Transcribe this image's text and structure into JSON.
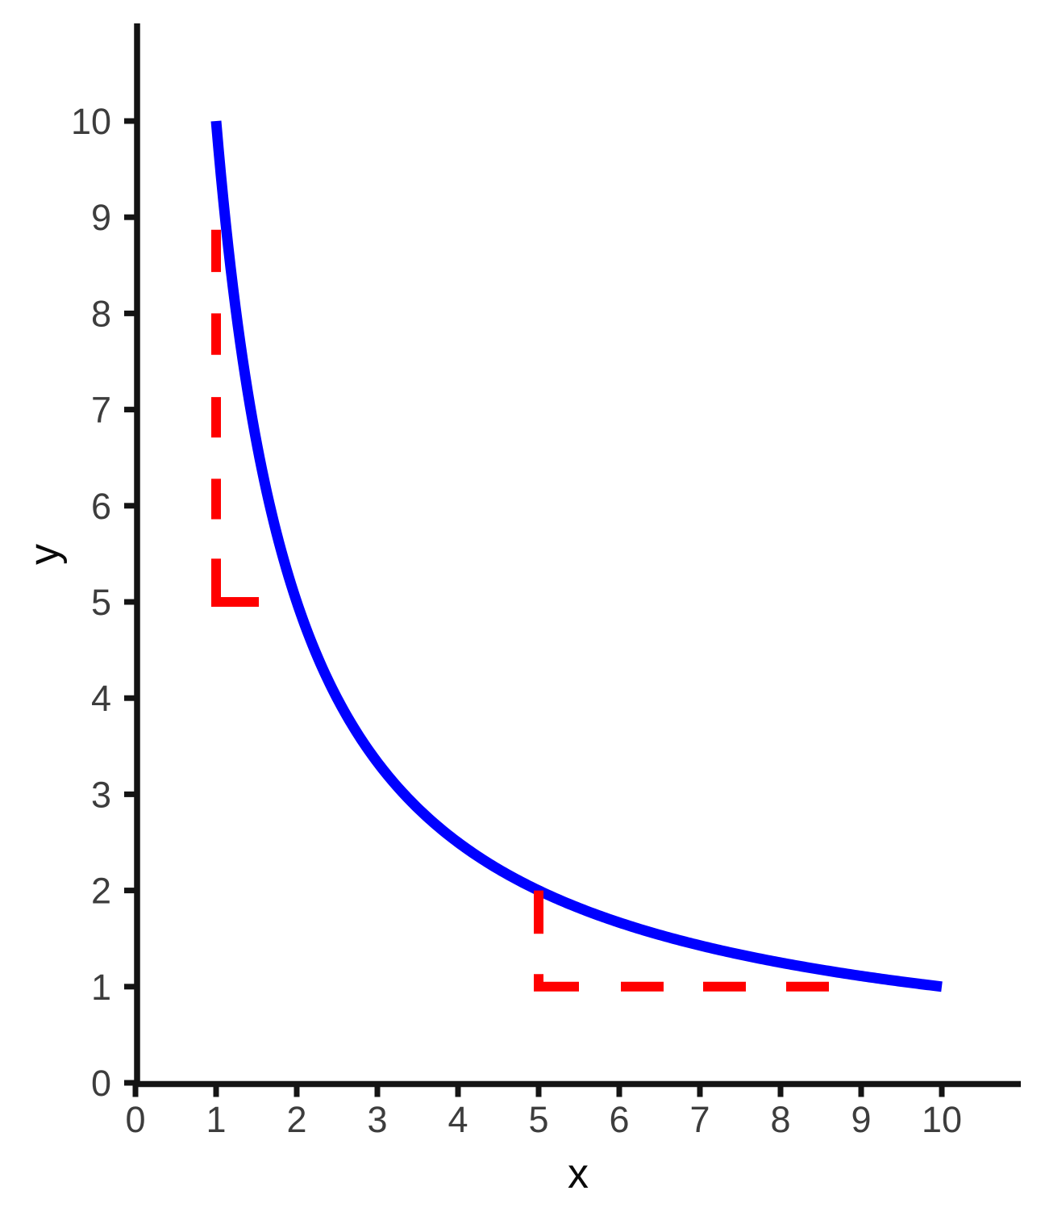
{
  "chart_data": {
    "type": "line",
    "title": "",
    "xlabel": "x",
    "ylabel": "y",
    "xlim": [
      0,
      11
    ],
    "ylim": [
      0,
      11
    ],
    "x_ticks": [
      0,
      1,
      2,
      3,
      4,
      5,
      6,
      7,
      8,
      9,
      10
    ],
    "y_ticks": [
      0,
      1,
      2,
      3,
      4,
      5,
      6,
      7,
      8,
      9,
      10
    ],
    "grid": false,
    "legend": false,
    "series": [
      {
        "name": "reciprocal-curve",
        "expr": "10/x",
        "x_start": 1,
        "x_end": 10,
        "color": "#0000ff",
        "style": "solid",
        "key_points": [
          [
            1,
            10
          ],
          [
            2,
            5
          ],
          [
            4,
            2.5
          ],
          [
            5,
            2
          ],
          [
            8,
            1.25
          ],
          [
            10,
            1
          ]
        ]
      }
    ],
    "annotations": [
      {
        "name": "dashed-guide-x1",
        "color": "#ff0000",
        "style": "dashed",
        "segments": [
          [
            [
              1,
              8.87
            ],
            [
              1,
              8.43
            ]
          ],
          [
            [
              1,
              8.0
            ],
            [
              1,
              7.57
            ]
          ],
          [
            [
              1,
              7.13
            ],
            [
              1,
              6.71
            ]
          ],
          [
            [
              1,
              6.28
            ],
            [
              1,
              5.86
            ]
          ],
          [
            [
              1,
              5.45
            ],
            [
              1,
              5.0
            ],
            [
              1.53,
              5.0
            ]
          ]
        ]
      },
      {
        "name": "dashed-guide-x5",
        "color": "#ff0000",
        "style": "dashed",
        "segments": [
          [
            [
              5,
              2.0
            ],
            [
              5,
              1.55
            ]
          ],
          [
            [
              5,
              1.13
            ],
            [
              5,
              1.0
            ],
            [
              5.5,
              1.0
            ]
          ],
          [
            [
              6.02,
              1.0
            ],
            [
              6.55,
              1.0
            ]
          ],
          [
            [
              7.04,
              1.0
            ],
            [
              7.57,
              1.0
            ]
          ],
          [
            [
              8.07,
              1.0
            ],
            [
              8.6,
              1.0
            ]
          ]
        ]
      }
    ],
    "axis": {
      "line_color": "#141414",
      "tick_label_color": "#3d3d3d",
      "axis_label_color": "#0a0a0a"
    }
  }
}
